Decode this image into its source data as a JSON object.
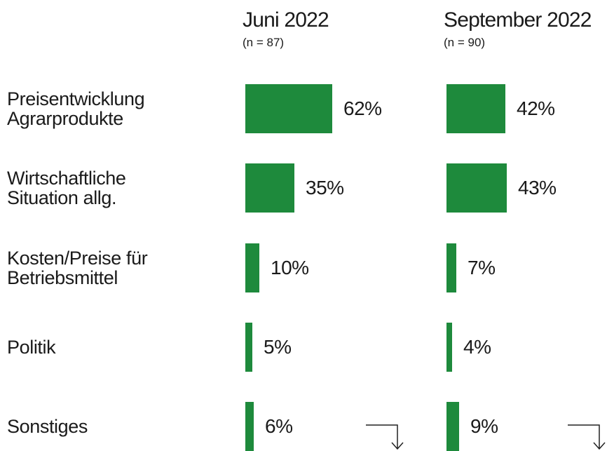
{
  "chart_data": {
    "type": "bar",
    "categories": [
      "Preisentwicklung Agrarprodukte",
      "Wirtschaftliche Situation allg.",
      "Kosten/Preise für Betriebsmittel",
      "Politik",
      "Sonstiges"
    ],
    "series": [
      {
        "name": "Juni 2022",
        "subtitle": "(n = 87)",
        "color": "#1e8a3c",
        "values": [
          62,
          35,
          10,
          5,
          6
        ],
        "value_labels": [
          "62%",
          "35%",
          "10%",
          "5%",
          "6%"
        ]
      },
      {
        "name": "September 2022",
        "subtitle": "(n = 90)",
        "color": "#1e8a3c",
        "values": [
          42,
          43,
          7,
          4,
          9
        ],
        "value_labels": [
          "42%",
          "43%",
          "7%",
          "4%",
          "9%"
        ]
      }
    ]
  }
}
